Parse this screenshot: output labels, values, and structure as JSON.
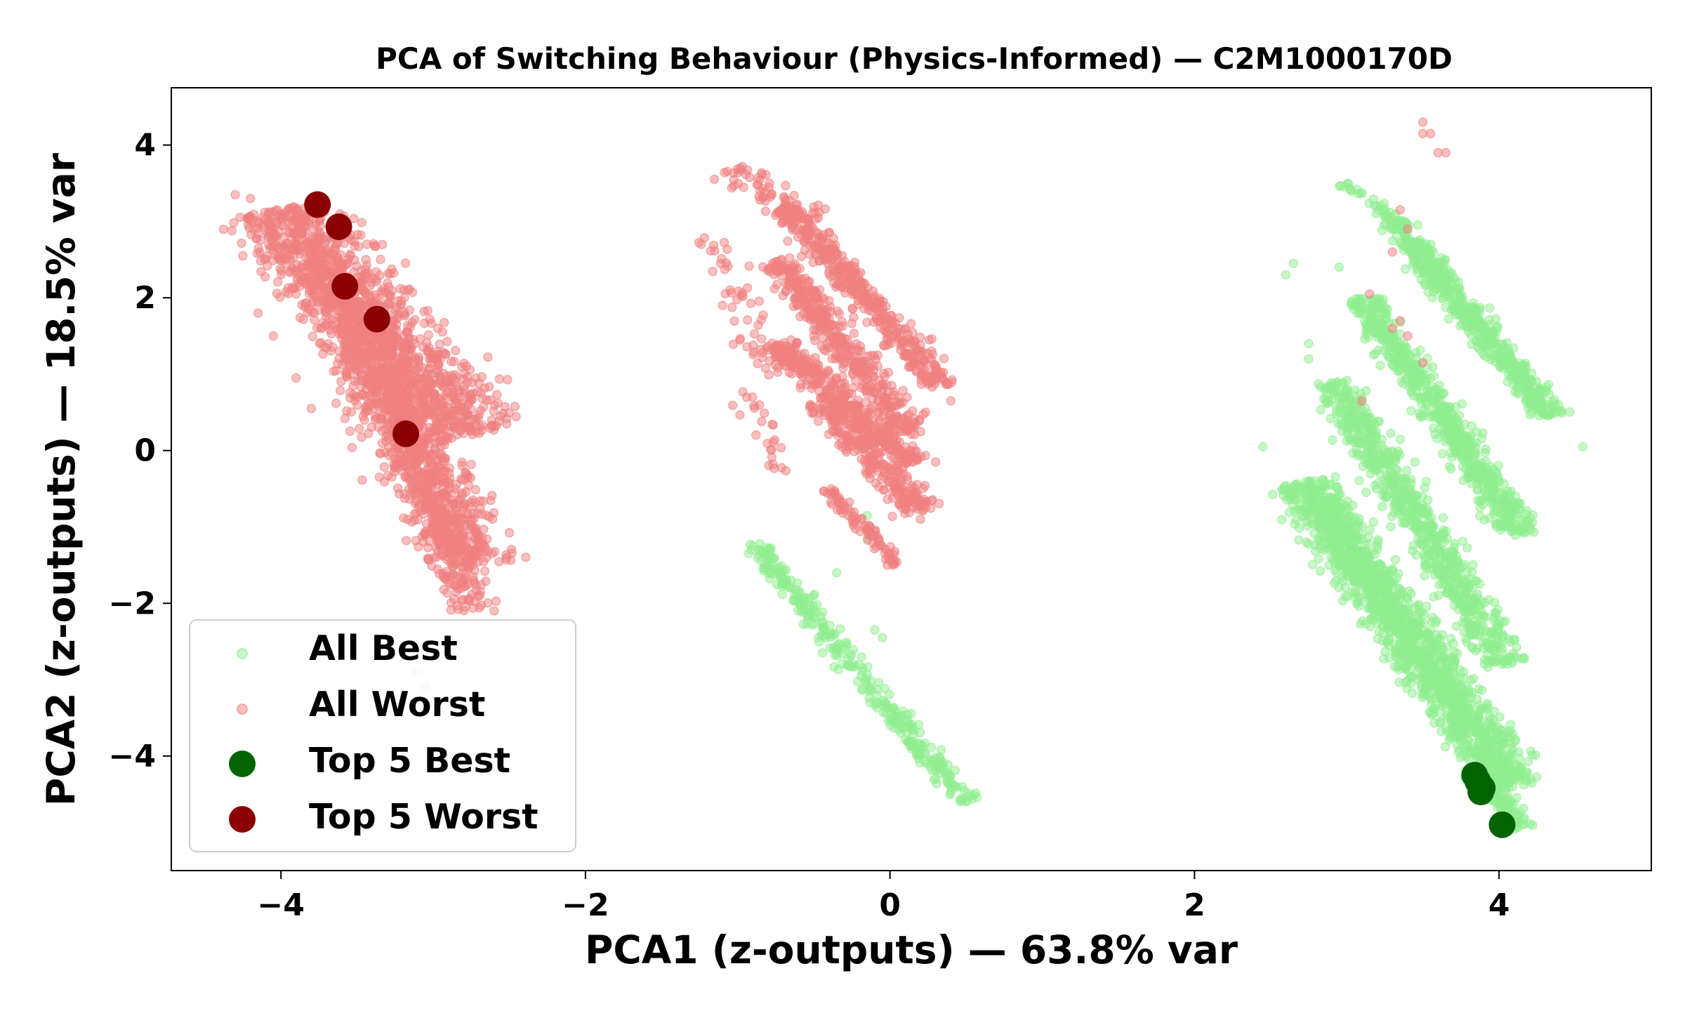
{
  "chart_data": {
    "type": "scatter",
    "title": "PCA of Switching Behaviour (Physics-Informed) — C2M1000170D",
    "xlabel": "PCA1 (z-outputs) — 63.8% var",
    "ylabel": "PCA2 (z-outputs) — 18.5% var",
    "xlim": [
      -4.72,
      5.0
    ],
    "ylim": [
      -5.5,
      4.75
    ],
    "xticks": [
      -4,
      -2,
      0,
      2,
      4
    ],
    "xtick_labels": [
      "−4",
      "−2",
      "0",
      "2",
      "4"
    ],
    "yticks": [
      -4,
      -2,
      0,
      2,
      4
    ],
    "ytick_labels": [
      "−4",
      "−2",
      "0",
      "2",
      "4"
    ],
    "grid": false,
    "legend_position": "lower-left",
    "colors": {
      "all_best": "#90ee90",
      "all_worst": "#f08080",
      "top_best": "#006400",
      "top_worst": "#8b0000"
    },
    "series": [
      {
        "name": "All Best",
        "marker": "small-circle",
        "alpha": 0.5,
        "clusters": [
          {
            "from": [
              3.3,
              3.0
            ],
            "to": [
              4.35,
              0.45
            ],
            "points": 520,
            "width": 0.12
          },
          {
            "from": [
              3.0,
              3.5
            ],
            "to": [
              3.4,
              2.9
            ],
            "points": 40,
            "width": 0.06
          },
          {
            "from": [
              3.1,
              2.0
            ],
            "to": [
              4.15,
              -1.1
            ],
            "points": 650,
            "width": 0.13
          },
          {
            "from": [
              2.9,
              0.9
            ],
            "to": [
              4.05,
              -2.8
            ],
            "points": 720,
            "width": 0.15
          },
          {
            "from": [
              2.7,
              -0.4
            ],
            "to": [
              4.1,
              -4.4
            ],
            "points": 1500,
            "width": 0.2
          },
          {
            "from": [
              3.85,
              -4.2
            ],
            "to": [
              4.15,
              -4.95
            ],
            "points": 120,
            "width": 0.09
          },
          {
            "from": [
              -0.9,
              -1.2
            ],
            "to": [
              0.5,
              -4.6
            ],
            "points": 330,
            "width": 0.09
          }
        ],
        "points": [
          [
            2.45,
            0.05
          ],
          [
            4.55,
            0.05
          ],
          [
            2.75,
            1.4
          ],
          [
            2.75,
            1.2
          ],
          [
            2.65,
            2.45
          ],
          [
            2.6,
            2.3
          ],
          [
            2.95,
            2.4
          ],
          [
            -0.9,
            -1.25
          ],
          [
            -0.85,
            -1.3
          ],
          [
            -0.7,
            -1.75
          ],
          [
            -0.65,
            -1.7
          ],
          [
            -0.5,
            -1.9
          ],
          [
            -0.1,
            -2.35
          ],
          [
            -0.05,
            -2.45
          ],
          [
            -0.35,
            -1.6
          ],
          [
            -0.15,
            -0.85
          ],
          [
            -0.15,
            -1.15
          ],
          [
            -3.05,
            -3.1
          ],
          [
            -3.1,
            -2.9
          ],
          [
            0.5,
            -4.6
          ]
        ]
      },
      {
        "name": "All Worst",
        "marker": "small-circle",
        "alpha": 0.5,
        "clusters": [
          {
            "from": [
              -4.05,
              3.15
            ],
            "to": [
              -2.75,
              0.2
            ],
            "points": 1150,
            "width": 0.35
          },
          {
            "from": [
              -3.75,
              2.4
            ],
            "to": [
              -2.7,
              -1.5
            ],
            "points": 900,
            "width": 0.28
          },
          {
            "from": [
              -3.35,
              1.1
            ],
            "to": [
              -2.75,
              -2.1
            ],
            "points": 420,
            "width": 0.16
          },
          {
            "from": [
              -0.7,
              3.2
            ],
            "to": [
              0.35,
              0.85
            ],
            "points": 420,
            "width": 0.12
          },
          {
            "from": [
              -0.75,
              2.5
            ],
            "to": [
              0.15,
              0.2
            ],
            "points": 420,
            "width": 0.13
          },
          {
            "from": [
              -0.75,
              1.4
            ],
            "to": [
              0.15,
              -0.15
            ],
            "points": 340,
            "width": 0.12
          },
          {
            "from": [
              -0.45,
              0.7
            ],
            "to": [
              0.2,
              -0.8
            ],
            "points": 280,
            "width": 0.13
          },
          {
            "from": [
              -0.4,
              -0.5
            ],
            "to": [
              0.05,
              -1.5
            ],
            "points": 90,
            "width": 0.06
          },
          {
            "from": [
              -1.05,
              3.7
            ],
            "to": [
              -0.5,
              3.0
            ],
            "points": 70,
            "width": 0.14
          },
          {
            "from": [
              -1.2,
              2.8
            ],
            "to": [
              -0.75,
              1.0
            ],
            "points": 55,
            "width": 0.14
          },
          {
            "from": [
              -0.95,
              0.8
            ],
            "to": [
              -0.7,
              -0.3
            ],
            "points": 25,
            "width": 0.1
          }
        ],
        "points": [
          [
            -4.3,
            3.35
          ],
          [
            -4.2,
            3.3
          ],
          [
            -4.25,
            2.55
          ],
          [
            -4.15,
            1.8
          ],
          [
            -4.05,
            1.5
          ],
          [
            -2.6,
            -2.1
          ],
          [
            -2.65,
            -0.85
          ],
          [
            -3.9,
            0.95
          ],
          [
            -3.8,
            0.55
          ],
          [
            3.5,
            4.3
          ],
          [
            3.5,
            4.15
          ],
          [
            3.55,
            4.15
          ],
          [
            3.6,
            3.9
          ],
          [
            3.65,
            3.9
          ],
          [
            3.35,
            3.15
          ],
          [
            3.4,
            2.9
          ],
          [
            3.3,
            2.6
          ],
          [
            3.15,
            2.05
          ],
          [
            3.35,
            1.7
          ],
          [
            3.3,
            1.6
          ],
          [
            3.4,
            1.5
          ],
          [
            3.5,
            1.15
          ],
          [
            3.1,
            0.65
          ],
          [
            -1.1,
            1.9
          ],
          [
            -1.05,
            2.1
          ],
          [
            0.4,
            0.65
          ],
          [
            0.3,
            -0.15
          ],
          [
            0.2,
            -0.9
          ]
        ]
      },
      {
        "name": "Top 5 Best",
        "marker": "large-circle",
        "alpha": 1,
        "points": [
          [
            3.84,
            -4.25
          ],
          [
            3.86,
            -4.33
          ],
          [
            3.89,
            -4.42
          ],
          [
            3.88,
            -4.47
          ],
          [
            4.02,
            -4.9
          ]
        ]
      },
      {
        "name": "Top 5 Worst",
        "marker": "large-circle",
        "alpha": 1,
        "points": [
          [
            -3.76,
            3.22
          ],
          [
            -3.62,
            2.93
          ],
          [
            -3.58,
            2.15
          ],
          [
            -3.37,
            1.72
          ],
          [
            -3.18,
            0.22
          ]
        ]
      }
    ]
  }
}
